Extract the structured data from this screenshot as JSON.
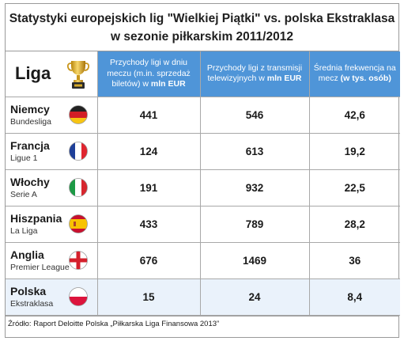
{
  "title_line1": "Statystyki europejskich lig \"Wielkiej Piątki\" vs. polska Ekstraklasa",
  "title_line2": "w sezonie piłkarskim 2011/2012",
  "header": {
    "liga_label": "Liga",
    "col1_text": "Przychody ligi w dniu meczu (m.in. sprzedaż biletów) w ",
    "col1_unit": "mln EUR",
    "col2_text": "Przychody ligi z transmisji telewizyjnych w ",
    "col2_unit": "mln EUR",
    "col3_text": "Średnia frekwencja na mecz ",
    "col3_unit": "(w tys. osób)"
  },
  "chart_data": {
    "type": "table",
    "title": "Statystyki europejskich lig \"Wielkiej Piątki\" vs. polska Ekstraklasa w sezonie piłkarskim 2011/2012",
    "columns": [
      "Liga",
      "Przychody ligi w dniu meczu (m.in. sprzedaż biletów) w mln EUR",
      "Przychody ligi z transmisji telewizyjnych w mln EUR",
      "Średnia frekwencja na mecz (w tys. osób)"
    ],
    "rows": [
      {
        "country": "Niemcy",
        "league": "Bundesliga",
        "matchday": "441",
        "tv": "546",
        "attendance": "42,6",
        "flag": "germany-flag-icon"
      },
      {
        "country": "Francja",
        "league": "Ligue 1",
        "matchday": "124",
        "tv": "613",
        "attendance": "19,2",
        "flag": "france-flag-icon"
      },
      {
        "country": "Włochy",
        "league": "Serie A",
        "matchday": "191",
        "tv": "932",
        "attendance": "22,5",
        "flag": "italy-flag-icon"
      },
      {
        "country": "Hiszpania",
        "league": "La Liga",
        "matchday": "433",
        "tv": "789",
        "attendance": "28,2",
        "flag": "spain-flag-icon"
      },
      {
        "country": "Anglia",
        "league": "Premier League",
        "matchday": "676",
        "tv": "1469",
        "attendance": "36",
        "flag": "england-flag-icon"
      },
      {
        "country": "Polska",
        "league": "Ekstraklasa",
        "matchday": "15",
        "tv": "24",
        "attendance": "8,4",
        "flag": "poland-flag-icon"
      }
    ]
  },
  "source": "Źródło: Raport Deloitte Polska „Piłkarska Liga Finansowa 2013”",
  "colors": {
    "header_blue": "#4f95d8",
    "highlight_row": "#eaf2fb"
  },
  "icons": {
    "header": "trophy-icon"
  }
}
